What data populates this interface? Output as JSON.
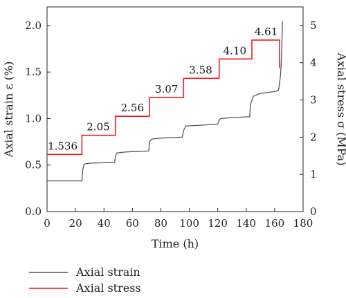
{
  "chart_data": {
    "type": "line",
    "xlabel": "Time (h)",
    "ylabel_left": "Axial strain ε (%)",
    "ylabel_right": "Axial stress σ (MPa)",
    "xlim": [
      0,
      180
    ],
    "ylim_left": [
      0.0,
      2.2
    ],
    "ylim_right": [
      0,
      5.5
    ],
    "x_ticks": [
      "0",
      "20",
      "40",
      "60",
      "80",
      "100",
      "120",
      "140",
      "160",
      "180"
    ],
    "y_left_ticks": [
      "0.0",
      "0.5",
      "1.0",
      "1.5",
      "2.0"
    ],
    "y_right_ticks": [
      "0",
      "1",
      "2",
      "3",
      "4",
      "5"
    ],
    "series": [
      {
        "name": "Axial strain",
        "axis": "left",
        "color": "#555555",
        "x": [
          0,
          24.5,
          25,
          26,
          30,
          40,
          47.5,
          48,
          49,
          55,
          60,
          70,
          71.5,
          72,
          73.5,
          80,
          95,
          96,
          97.5,
          110,
          120,
          121,
          122,
          130,
          142.5,
          143,
          145,
          150,
          160,
          162.5,
          163,
          164,
          164.5,
          165,
          165.5
        ],
        "y": [
          0.33,
          0.33,
          0.44,
          0.51,
          0.52,
          0.525,
          0.53,
          0.59,
          0.63,
          0.64,
          0.645,
          0.65,
          0.65,
          0.75,
          0.78,
          0.79,
          0.8,
          0.87,
          0.92,
          0.93,
          0.94,
          0.98,
          1.0,
          1.01,
          1.02,
          1.15,
          1.24,
          1.27,
          1.29,
          1.3,
          1.33,
          1.45,
          1.54,
          1.75,
          2.05
        ]
      },
      {
        "name": "Axial stress",
        "axis": "right",
        "color": "#ee1c25",
        "x": [
          0,
          24.5,
          24.5,
          48,
          48,
          72,
          72,
          96,
          96,
          121,
          121,
          144,
          144,
          163.5,
          163.5
        ],
        "y": [
          1.536,
          1.536,
          2.05,
          2.05,
          2.56,
          2.56,
          3.07,
          3.07,
          3.58,
          3.58,
          4.1,
          4.1,
          4.61,
          4.61,
          3.85
        ]
      }
    ],
    "stage_labels": [
      {
        "x": 11,
        "text": "1.536"
      },
      {
        "x": 36,
        "text": "2.05"
      },
      {
        "x": 60,
        "text": "2.56"
      },
      {
        "x": 84,
        "text": "3.07"
      },
      {
        "x": 108,
        "text": "3.58"
      },
      {
        "x": 132,
        "text": "4.10"
      },
      {
        "x": 154,
        "text": "4.61"
      }
    ],
    "stage_values": [
      1.536,
      2.05,
      2.56,
      3.07,
      3.58,
      4.1,
      4.61
    ],
    "legend": [
      "Axial strain",
      "Axial stress"
    ]
  }
}
